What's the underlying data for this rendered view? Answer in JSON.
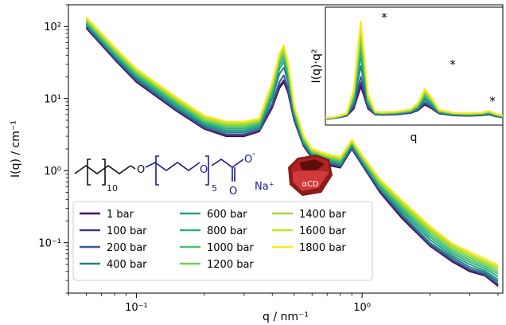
{
  "chart_data": [
    {
      "type": "line",
      "xlabel": "q / nm⁻¹",
      "ylabel": "I(q) / cm⁻¹",
      "xscale": "log",
      "yscale": "log",
      "xlim": [
        0.05,
        4.2
      ],
      "ylim": [
        0.02,
        200
      ],
      "x_ticks": [
        {
          "v": 0.1,
          "label": "10⁻¹"
        },
        {
          "v": 1,
          "label": "10⁰"
        }
      ],
      "y_ticks": [
        {
          "v": 0.1,
          "label": "10⁻¹"
        },
        {
          "v": 1,
          "label": "10⁰"
        },
        {
          "v": 10,
          "label": "10¹"
        },
        {
          "v": 100,
          "label": "10²"
        }
      ],
      "q": [
        0.06,
        0.08,
        0.1,
        0.15,
        0.2,
        0.25,
        0.3,
        0.35,
        0.4,
        0.43,
        0.45,
        0.47,
        0.5,
        0.55,
        0.6,
        0.7,
        0.8,
        0.9,
        1.0,
        1.2,
        1.5,
        2.0,
        2.5,
        3.0,
        3.5,
        4.0
      ],
      "series": [
        {
          "name": "1 bar",
          "color": "#440154",
          "values": [
            95,
            35,
            17,
            6.8,
            3.8,
            3.0,
            3.0,
            3.5,
            7.5,
            14,
            17,
            12,
            5.0,
            2.2,
            1.5,
            1.2,
            1.1,
            2.0,
            1.2,
            0.5,
            0.22,
            0.09,
            0.055,
            0.04,
            0.035,
            0.025
          ]
        },
        {
          "name": "100 bar",
          "color": "#46327e",
          "values": [
            98,
            36,
            17.5,
            7.0,
            3.9,
            3.1,
            3.1,
            3.6,
            7.8,
            15,
            18,
            12.5,
            5.1,
            2.25,
            1.55,
            1.25,
            1.13,
            2.05,
            1.23,
            0.52,
            0.23,
            0.092,
            0.057,
            0.041,
            0.036,
            0.026
          ]
        },
        {
          "name": "200 bar",
          "color": "#365c8d",
          "values": [
            100,
            37,
            18,
            7.2,
            4.0,
            3.2,
            3.2,
            3.7,
            8.5,
            17,
            21,
            14,
            5.3,
            2.3,
            1.6,
            1.3,
            1.15,
            2.1,
            1.25,
            0.54,
            0.24,
            0.095,
            0.059,
            0.043,
            0.037,
            0.027
          ]
        },
        {
          "name": "400 bar",
          "color": "#277f8e",
          "values": [
            105,
            39,
            19,
            7.5,
            4.2,
            3.4,
            3.4,
            3.9,
            10,
            22,
            27,
            17,
            5.8,
            2.4,
            1.65,
            1.35,
            1.2,
            2.2,
            1.3,
            0.56,
            0.25,
            0.1,
            0.063,
            0.046,
            0.039,
            0.029
          ]
        },
        {
          "name": "600 bar",
          "color": "#1fa187",
          "values": [
            108,
            40,
            20,
            8.0,
            4.4,
            3.6,
            3.6,
            4.1,
            11,
            26,
            32,
            20,
            6.2,
            2.5,
            1.7,
            1.4,
            1.25,
            2.3,
            1.35,
            0.58,
            0.27,
            0.11,
            0.067,
            0.05,
            0.041,
            0.031
          ]
        },
        {
          "name": "800 bar",
          "color": "#2db27d",
          "values": [
            112,
            42,
            21,
            8.4,
            4.6,
            3.8,
            3.8,
            4.3,
            12,
            29,
            36,
            22,
            6.5,
            2.6,
            1.75,
            1.45,
            1.3,
            2.4,
            1.4,
            0.61,
            0.29,
            0.12,
            0.072,
            0.054,
            0.044,
            0.034
          ]
        },
        {
          "name": "1000 bar",
          "color": "#4ac16d",
          "values": [
            116,
            44,
            22,
            8.8,
            4.8,
            4.0,
            4.0,
            4.5,
            13,
            32,
            40,
            24,
            6.9,
            2.7,
            1.8,
            1.5,
            1.35,
            2.45,
            1.45,
            0.64,
            0.31,
            0.13,
            0.077,
            0.058,
            0.047,
            0.037
          ]
        },
        {
          "name": "1200 bar",
          "color": "#73d056",
          "values": [
            120,
            46,
            23,
            9.2,
            5.0,
            4.2,
            4.2,
            4.7,
            14,
            35,
            44,
            26,
            7.2,
            2.8,
            1.85,
            1.55,
            1.4,
            2.5,
            1.5,
            0.67,
            0.33,
            0.14,
            0.082,
            0.062,
            0.05,
            0.04
          ]
        },
        {
          "name": "1400 bar",
          "color": "#9fda3a",
          "values": [
            125,
            48,
            24,
            9.6,
            5.3,
            4.4,
            4.4,
            4.9,
            15,
            38,
            48,
            28,
            7.5,
            2.9,
            1.9,
            1.6,
            1.45,
            2.55,
            1.55,
            0.7,
            0.35,
            0.15,
            0.088,
            0.066,
            0.053,
            0.043
          ]
        },
        {
          "name": "1600 bar",
          "color": "#cae11f",
          "values": [
            130,
            50,
            25,
            10.0,
            5.5,
            4.6,
            4.6,
            5.1,
            16,
            40,
            52,
            30,
            7.8,
            3.0,
            1.95,
            1.65,
            1.5,
            2.6,
            1.6,
            0.73,
            0.37,
            0.16,
            0.093,
            0.07,
            0.056,
            0.046
          ]
        },
        {
          "name": "1800 bar",
          "color": "#fde725",
          "values": [
            135,
            52,
            26,
            10.5,
            5.8,
            4.8,
            4.8,
            5.3,
            17,
            42,
            55,
            32,
            8.1,
            3.1,
            2.0,
            1.7,
            1.55,
            2.7,
            1.65,
            0.76,
            0.39,
            0.17,
            0.098,
            0.075,
            0.06,
            0.049
          ]
        }
      ]
    },
    {
      "type": "line",
      "xlabel": "q",
      "ylabel": "I(q)·q²",
      "annotations": [
        "*",
        "*",
        "*"
      ],
      "q": [
        0.2,
        0.25,
        0.3,
        0.35,
        0.4,
        0.43,
        0.45,
        0.47,
        0.5,
        0.55,
        0.6,
        0.7,
        0.8,
        0.85,
        0.9,
        0.95,
        1.0,
        1.1,
        1.2,
        1.3,
        1.35,
        1.4,
        1.45
      ],
      "series": [
        {
          "values": [
            0.15,
            0.2,
            0.3,
            0.45,
            1.2,
            2.6,
            3.5,
            2.6,
            1.2,
            0.6,
            0.55,
            0.6,
            0.75,
            1.0,
            1.6,
            1.2,
            0.7,
            0.5,
            0.45,
            0.5,
            0.6,
            0.4,
            0.3
          ]
        },
        {
          "values": [
            0.16,
            0.21,
            0.31,
            0.47,
            1.3,
            2.9,
            3.9,
            2.9,
            1.3,
            0.62,
            0.57,
            0.62,
            0.78,
            1.05,
            1.7,
            1.25,
            0.72,
            0.52,
            0.47,
            0.52,
            0.63,
            0.42,
            0.31
          ]
        },
        {
          "values": [
            0.17,
            0.22,
            0.32,
            0.5,
            1.5,
            3.4,
            4.5,
            3.3,
            1.4,
            0.65,
            0.6,
            0.65,
            0.82,
            1.1,
            1.85,
            1.35,
            0.75,
            0.55,
            0.5,
            0.55,
            0.66,
            0.44,
            0.32
          ]
        },
        {
          "values": [
            0.18,
            0.23,
            0.34,
            0.53,
            1.8,
            4.2,
            5.6,
            4.0,
            1.6,
            0.68,
            0.63,
            0.68,
            0.86,
            1.2,
            2.1,
            1.5,
            0.8,
            0.58,
            0.53,
            0.58,
            0.7,
            0.47,
            0.34
          ]
        },
        {
          "values": [
            0.19,
            0.24,
            0.36,
            0.56,
            2.0,
            4.9,
            6.5,
            4.7,
            1.8,
            0.72,
            0.66,
            0.72,
            0.9,
            1.3,
            2.3,
            1.65,
            0.85,
            0.61,
            0.56,
            0.61,
            0.74,
            0.5,
            0.36
          ]
        },
        {
          "values": [
            0.2,
            0.25,
            0.38,
            0.59,
            2.2,
            5.4,
            7.2,
            5.2,
            1.95,
            0.75,
            0.69,
            0.75,
            0.94,
            1.38,
            2.5,
            1.8,
            0.9,
            0.64,
            0.59,
            0.64,
            0.78,
            0.53,
            0.38
          ]
        },
        {
          "values": [
            0.21,
            0.26,
            0.4,
            0.62,
            2.4,
            5.9,
            7.9,
            5.7,
            2.1,
            0.78,
            0.72,
            0.78,
            0.98,
            1.45,
            2.65,
            1.9,
            0.94,
            0.67,
            0.62,
            0.67,
            0.82,
            0.56,
            0.4
          ]
        },
        {
          "values": [
            0.22,
            0.27,
            0.42,
            0.65,
            2.6,
            6.4,
            8.6,
            6.2,
            2.25,
            0.81,
            0.75,
            0.81,
            1.02,
            1.52,
            2.8,
            2.0,
            0.98,
            0.7,
            0.65,
            0.7,
            0.86,
            0.59,
            0.42
          ]
        },
        {
          "values": [
            0.23,
            0.28,
            0.44,
            0.68,
            2.8,
            6.9,
            9.2,
            6.6,
            2.4,
            0.84,
            0.78,
            0.84,
            1.06,
            1.6,
            2.95,
            2.1,
            1.02,
            0.73,
            0.68,
            0.73,
            0.9,
            0.62,
            0.44
          ]
        },
        {
          "values": [
            0.24,
            0.29,
            0.46,
            0.71,
            3.0,
            7.3,
            9.7,
            7.0,
            2.55,
            0.87,
            0.81,
            0.87,
            1.1,
            1.68,
            3.1,
            2.2,
            1.06,
            0.76,
            0.71,
            0.76,
            0.94,
            0.65,
            0.46
          ]
        },
        {
          "values": [
            0.25,
            0.3,
            0.48,
            0.74,
            3.2,
            7.7,
            10.2,
            7.4,
            2.7,
            0.9,
            0.84,
            0.9,
            1.14,
            1.75,
            3.25,
            2.3,
            1.1,
            0.79,
            0.74,
            0.79,
            0.98,
            0.68,
            0.48
          ]
        }
      ]
    }
  ],
  "molecule": {
    "subscript_10": "10",
    "subscript_5": "5",
    "oxygen": "O",
    "carbonyl_o": "O",
    "anion_o": "O",
    "minus": "-",
    "counterion": "Na⁺",
    "cyclodextrin_label": "αCD"
  },
  "colors": {
    "molecule": "#1a1a8c",
    "cd_dark": "#8b1a1a",
    "cd_mid": "#b22222",
    "cd_light": "#d13a3a"
  }
}
